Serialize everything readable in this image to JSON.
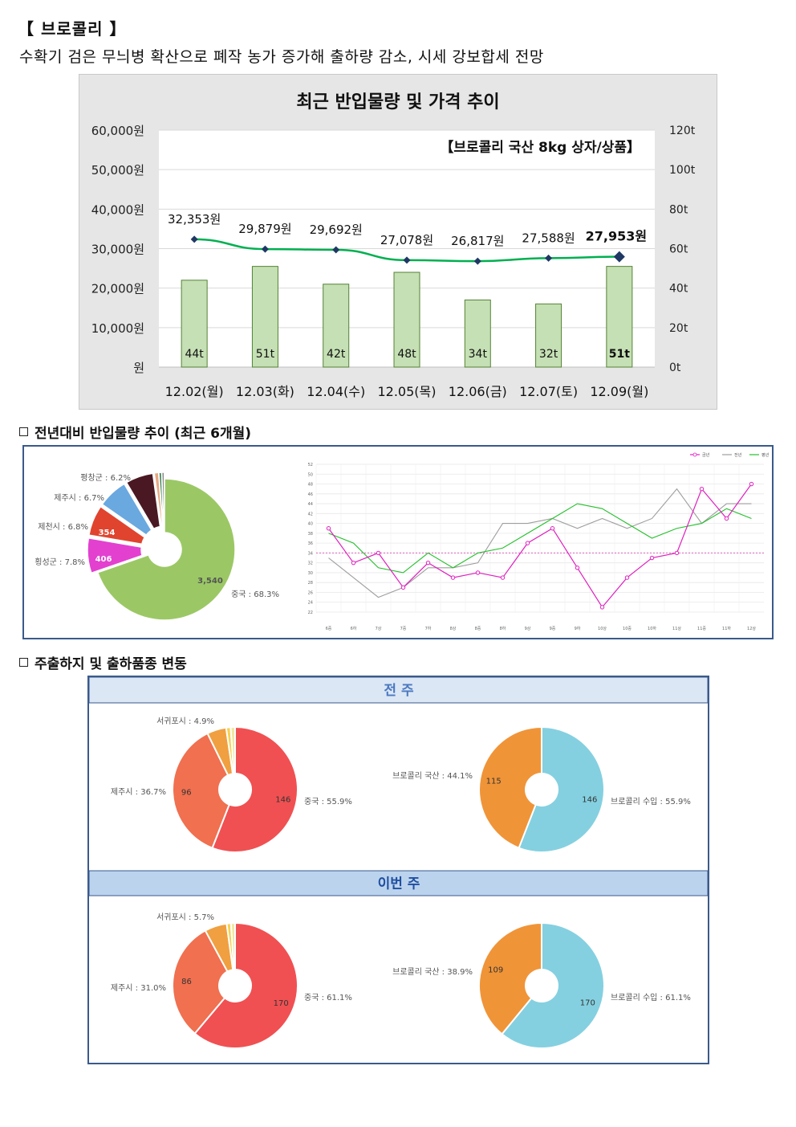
{
  "header": {
    "title": "【 브로콜리 】",
    "subtitle": "수확기 검은 무늬병 확산으로 폐작 농가 증가해 출하량 감소, 시세 강보합세 전망"
  },
  "sections": {
    "trend": "전년대비 반입물량 추이 (최근 6개월)",
    "origin": "주출하지 및 출하품종 변동"
  },
  "chart_data": [
    {
      "id": "price_volume",
      "type": "bar+line",
      "title": "최근 반입물량 및 가격 추이",
      "annotation": "【브로콜리 국산 8kg 상자/상품】",
      "categories": [
        "12.02(월)",
        "12.03(화)",
        "12.04(수)",
        "12.05(목)",
        "12.06(금)",
        "12.07(토)",
        "12.09(월)"
      ],
      "series": [
        {
          "axis": "right",
          "type": "bar",
          "values": [
            44,
            51,
            42,
            48,
            34,
            32,
            51
          ],
          "labels": [
            "44t",
            "51t",
            "42t",
            "48t",
            "34t",
            "32t",
            "51t"
          ]
        },
        {
          "axis": "left",
          "type": "line",
          "values": [
            32353,
            29879,
            29692,
            27078,
            26817,
            27588,
            27953
          ],
          "labels": [
            "32,353원",
            "29,879원",
            "29,692원",
            "27,078원",
            "26,817원",
            "27,588원",
            "27,953원"
          ]
        }
      ],
      "left_axis": {
        "ylim": [
          0,
          60000
        ],
        "ticks": [
          "원",
          "10,000원",
          "20,000원",
          "30,000원",
          "40,000원",
          "50,000원",
          "60,000원"
        ]
      },
      "right_axis": {
        "ylim": [
          0,
          120
        ],
        "ticks": [
          "0t",
          "20t",
          "40t",
          "60t",
          "80t",
          "100t",
          "120t"
        ]
      },
      "colors": {
        "bar": "#c5e0b4",
        "bar_border": "#548235",
        "line": "#00b050",
        "marker": "#1f3864",
        "panel": "#e6e6e6"
      }
    },
    {
      "id": "region_pie_6m",
      "type": "pie",
      "slices": [
        {
          "label": "중국 : 68.3%",
          "value": 3540,
          "value_label": "3,540",
          "percent": 68.3,
          "color": "#9bc865"
        },
        {
          "label": "횡성군 : 7.8%",
          "value": 406,
          "value_label": "406",
          "percent": 7.8,
          "color": "#e340d0"
        },
        {
          "label": "제천시 : 6.8%",
          "value": 354,
          "value_label": "354",
          "percent": 6.8,
          "color": "#e0442e"
        },
        {
          "label": "제주시 : 6.7%",
          "value": 347,
          "value_label": "",
          "percent": 6.7,
          "color": "#6aa8e0"
        },
        {
          "label": "평창군 : 6.2%",
          "value": 321,
          "value_label": "",
          "percent": 6.2,
          "color": "#4a1822"
        },
        {
          "label": "",
          "value": 50,
          "value_label": "",
          "percent": 1.0,
          "color": "#e8a882"
        },
        {
          "label": "",
          "value": 30,
          "value_label": "",
          "percent": 0.6,
          "color": "#2e7d4a"
        },
        {
          "label": "",
          "value": 30,
          "value_label": "",
          "percent": 0.6,
          "color": "#8e8e8e"
        }
      ]
    },
    {
      "id": "yoy_trend",
      "type": "line",
      "legend": [
        "금년",
        "전년",
        "평년"
      ],
      "legend_position": "top-right",
      "x": [
        "6중",
        "6하",
        "7상",
        "7중",
        "7하",
        "8상",
        "8중",
        "8하",
        "9상",
        "9중",
        "9하",
        "10상",
        "10중",
        "10하",
        "11상",
        "11중",
        "11하",
        "12상"
      ],
      "ylim": [
        22,
        52
      ],
      "yticks": [
        22,
        24,
        26,
        28,
        30,
        32,
        34,
        36,
        38,
        40,
        42,
        44,
        46,
        48,
        50,
        52
      ],
      "series": [
        {
          "name": "금년",
          "color": "#e020c0",
          "marker": "open-circle",
          "values": [
            39,
            32,
            34,
            27,
            32,
            29,
            30,
            29,
            36,
            39,
            31,
            23,
            29,
            33,
            34,
            47,
            41,
            48
          ]
        },
        {
          "name": "전년",
          "color": "#9e9e9e",
          "values": [
            33,
            29,
            25,
            27,
            31,
            31,
            32,
            40,
            40,
            41,
            39,
            41,
            39,
            41,
            47,
            40,
            44,
            44
          ]
        },
        {
          "name": "평년",
          "color": "#22c02a",
          "values": [
            38,
            36,
            31,
            30,
            34,
            31,
            34,
            35,
            38,
            41,
            44,
            43,
            40,
            37,
            39,
            40,
            43,
            41
          ]
        }
      ],
      "reference_line": {
        "value": 34,
        "color": "#e060c0"
      }
    },
    {
      "id": "weekly_origin",
      "type": "pie",
      "panels": [
        {
          "title": "전 주",
          "regions": [
            {
              "label": "중국 : 55.9%",
              "value": 146,
              "value_label": "146",
              "color": "#f05052"
            },
            {
              "label": "제주시 : 36.7%",
              "value": 96,
              "value_label": "96",
              "color": "#f07050"
            },
            {
              "label": "서귀포시 : 4.9%",
              "value": 13,
              "value_label": "",
              "color": "#f0a040"
            },
            {
              "label": "",
              "value": 3,
              "value_label": "",
              "color": "#f7d050"
            },
            {
              "label": "",
              "value": 3,
              "value_label": "",
              "color": "#f0e8a0"
            }
          ],
          "varieties": [
            {
              "label": "브로콜리 수입 : 55.9%",
              "value": 146,
              "value_label": "146",
              "color": "#84d0e0"
            },
            {
              "label": "브로콜리 국산 : 44.1%",
              "value": 115,
              "value_label": "115",
              "color": "#f09438"
            }
          ]
        },
        {
          "title": "이번 주",
          "regions": [
            {
              "label": "중국 : 61.1%",
              "value": 170,
              "value_label": "170",
              "color": "#f05052"
            },
            {
              "label": "제주시 : 31.0%",
              "value": 86,
              "value_label": "86",
              "color": "#f07050"
            },
            {
              "label": "서귀포시 : 5.7%",
              "value": 16,
              "value_label": "",
              "color": "#f0a040"
            },
            {
              "label": "",
              "value": 3,
              "value_label": "",
              "color": "#f7d050"
            },
            {
              "label": "",
              "value": 3,
              "value_label": "",
              "color": "#f0e8a0"
            }
          ],
          "varieties": [
            {
              "label": "브로콜리 수입 : 61.1%",
              "value": 170,
              "value_label": "170",
              "color": "#84d0e0"
            },
            {
              "label": "브로콜리 국산 : 38.9%",
              "value": 109,
              "value_label": "109",
              "color": "#f09438"
            }
          ]
        }
      ]
    }
  ]
}
